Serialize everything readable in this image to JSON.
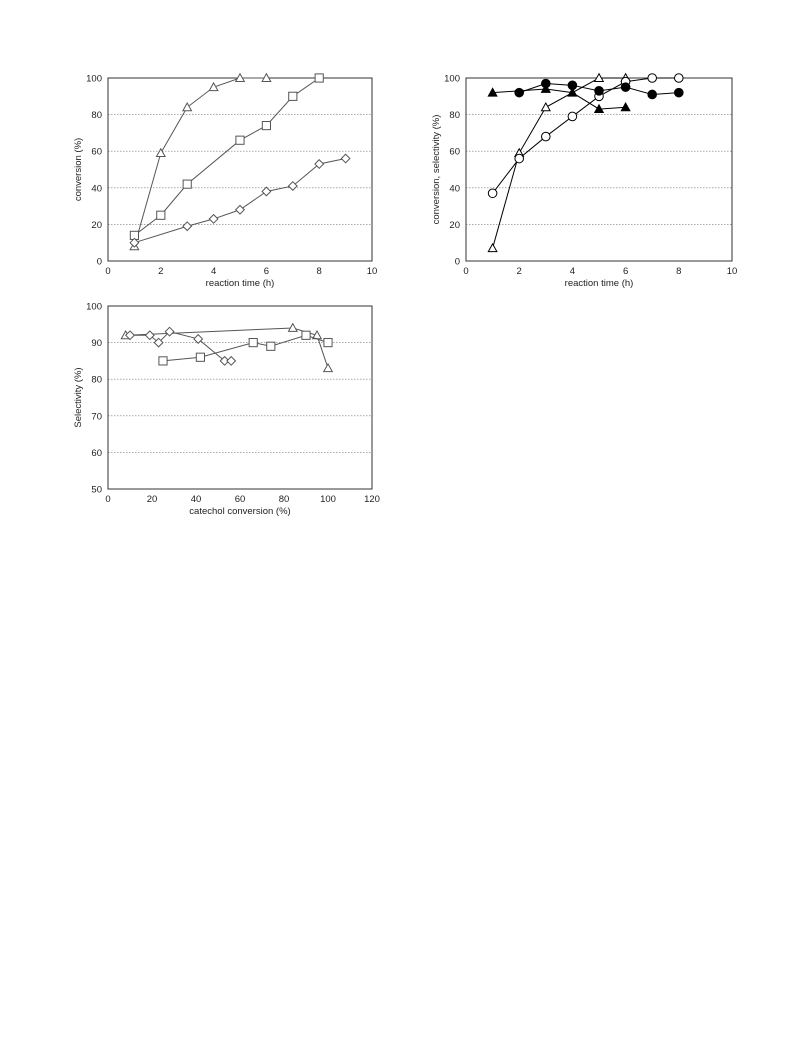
{
  "chart_data": [
    {
      "type": "line",
      "title": "",
      "xlabel": "reaction time (h)",
      "ylabel": "conversion (%)",
      "xlim": [
        0,
        10
      ],
      "ylim": [
        0,
        100
      ],
      "xticks": [
        "0",
        "2",
        "4",
        "6",
        "8",
        "10"
      ],
      "yticks": [
        "0",
        "20",
        "40",
        "60",
        "80",
        "100"
      ],
      "grid": "horizontal",
      "legend": "none",
      "series": [
        {
          "marker": "triangle-open",
          "color": "#555555",
          "x": [
            1,
            2,
            3,
            4,
            5,
            6
          ],
          "y": [
            8,
            59,
            84,
            95,
            100,
            100
          ]
        },
        {
          "marker": "square-open",
          "color": "#555555",
          "x": [
            1,
            2,
            3,
            5,
            6,
            7,
            8
          ],
          "y": [
            14,
            25,
            42,
            66,
            74,
            90,
            100
          ]
        },
        {
          "marker": "diamond-open",
          "color": "#555555",
          "x": [
            1,
            3,
            4,
            5,
            6,
            7,
            8,
            9
          ],
          "y": [
            10,
            19,
            23,
            28,
            38,
            41,
            53,
            56
          ]
        }
      ]
    },
    {
      "type": "line",
      "title": "",
      "xlabel": "reaction time (h)",
      "ylabel": "conversion, selectivity (%)",
      "xlim": [
        0,
        10
      ],
      "ylim": [
        0,
        100
      ],
      "xticks": [
        "0",
        "2",
        "4",
        "6",
        "8",
        "10"
      ],
      "yticks": [
        "0",
        "20",
        "40",
        "60",
        "80",
        "100"
      ],
      "grid": "horizontal",
      "legend": "none",
      "series": [
        {
          "marker": "triangle-open",
          "color": "#000000",
          "x": [
            1,
            2,
            3,
            5,
            6
          ],
          "y": [
            7,
            59,
            84,
            100,
            100
          ]
        },
        {
          "marker": "circle-open",
          "color": "#000000",
          "x": [
            1,
            2,
            3,
            4,
            5,
            6,
            7,
            8
          ],
          "y": [
            37,
            56,
            68,
            79,
            90,
            98,
            100,
            100
          ]
        },
        {
          "marker": "triangle-filled",
          "color": "#000000",
          "x": [
            1,
            3,
            4,
            5,
            6
          ],
          "y": [
            92,
            94,
            92,
            83,
            84
          ]
        },
        {
          "marker": "circle-filled",
          "color": "#000000",
          "x": [
            2,
            3,
            4,
            5,
            6,
            7,
            8
          ],
          "y": [
            92,
            97,
            96,
            93,
            95,
            91,
            92
          ]
        }
      ]
    },
    {
      "type": "line",
      "title": "",
      "xlabel": "catechol conversion (%)",
      "ylabel": "Selectivity (%)",
      "xlim": [
        0,
        120
      ],
      "ylim": [
        50,
        100
      ],
      "xticks": [
        "0",
        "20",
        "40",
        "60",
        "80",
        "100",
        "120"
      ],
      "yticks": [
        "50",
        "60",
        "70",
        "80",
        "90",
        "100"
      ],
      "grid": "horizontal",
      "legend": "none",
      "series": [
        {
          "marker": "triangle-open",
          "color": "#555555",
          "x": [
            8,
            84,
            95,
            100
          ],
          "y": [
            92,
            94,
            92,
            83
          ]
        },
        {
          "marker": "square-open",
          "color": "#555555",
          "x": [
            25,
            42,
            66,
            74,
            90,
            100
          ],
          "y": [
            85,
            86,
            90,
            89,
            92,
            90
          ]
        },
        {
          "marker": "diamond-open",
          "color": "#555555",
          "x": [
            10,
            19,
            23,
            28,
            41,
            53,
            56
          ],
          "y": [
            92,
            92,
            90,
            93,
            91,
            85,
            85
          ]
        }
      ]
    }
  ]
}
